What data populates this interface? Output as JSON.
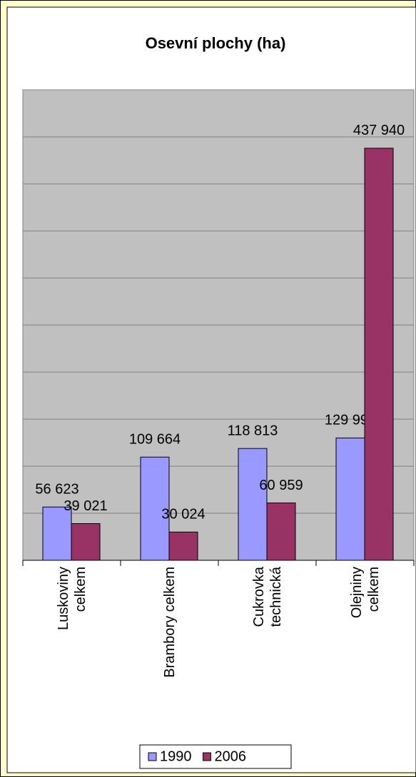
{
  "chart_data": {
    "type": "bar",
    "title": "Osevní plochy (ha)",
    "categories": [
      "Luskoviny\ncelkem",
      "Brambory celkem",
      "Cukrovka\ntechnická",
      "Olejniny\ncelkem"
    ],
    "series": [
      {
        "name": "1990",
        "color": "#9999ff",
        "values": [
          56623,
          109664,
          118813,
          129996
        ],
        "value_labels": [
          "56 623",
          "109 664",
          "118 813",
          "129 996"
        ]
      },
      {
        "name": "2006",
        "color": "#993366",
        "values": [
          39021,
          30024,
          60959,
          437940
        ],
        "value_labels": [
          "39 021",
          "30 024",
          "60 959",
          "437 940"
        ]
      }
    ],
    "ylim": [
      0,
      500000
    ],
    "yticks": [
      0,
      50000,
      100000,
      150000,
      200000,
      250000,
      300000,
      350000,
      400000,
      450000,
      500000
    ],
    "grid": true,
    "legend": "bottom"
  }
}
